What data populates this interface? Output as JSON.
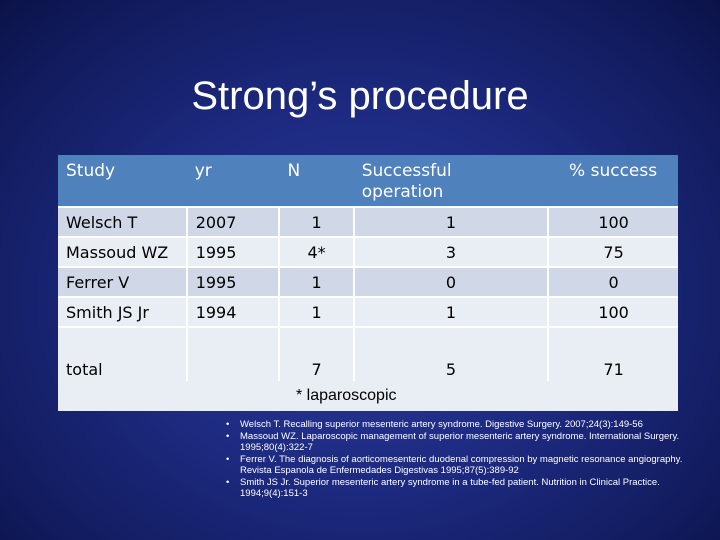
{
  "title": "Strong’s procedure",
  "table": {
    "headers": {
      "study": "Study",
      "yr": "yr",
      "n": "N",
      "success_line1": "Successful",
      "success_line2": "operation",
      "pct": "% success"
    },
    "rows": [
      {
        "study": "Welsch T",
        "yr": "2007",
        "n": "1",
        "success": "1",
        "pct": "100"
      },
      {
        "study": "Massoud WZ",
        "yr": "1995",
        "n": "4*",
        "success": "3",
        "pct": "75"
      },
      {
        "study": "Ferrer V",
        "yr": "1995",
        "n": "1",
        "success": "0",
        "pct": "0"
      },
      {
        "study": "Smith JS Jr",
        "yr": "1994",
        "n": "1",
        "success": "1",
        "pct": "100"
      }
    ],
    "total": {
      "label": "total",
      "yr": "",
      "n": "7",
      "success": "5",
      "pct": "71"
    },
    "colors": {
      "header": "#4f81bd",
      "row_dark": "#d0d8e8",
      "row_light": "#e9edf4"
    }
  },
  "note": "* laparoscopic",
  "references": [
    "Welsch T.  Recalling superior mesenteric artery syndrome.  Digestive Surgery. 2007;24(3):149-56",
    "Massoud WZ.  Laparoscopic management of superior mesenteric artery syndrome. International Surgery. 1995;80(4):322-7",
    "Ferrer V.  The diagnosis of aorticomesenteric duodenal compression by magnetic resonance angiography. Revista Espanola de Enfermedades Digestivas 1995;87(5):389-92",
    "Smith JS Jr.  Superior mesenteric artery syndrome in a tube-fed patient. Nutrition in Clinical Practice. 1994;9(4):151-3"
  ]
}
